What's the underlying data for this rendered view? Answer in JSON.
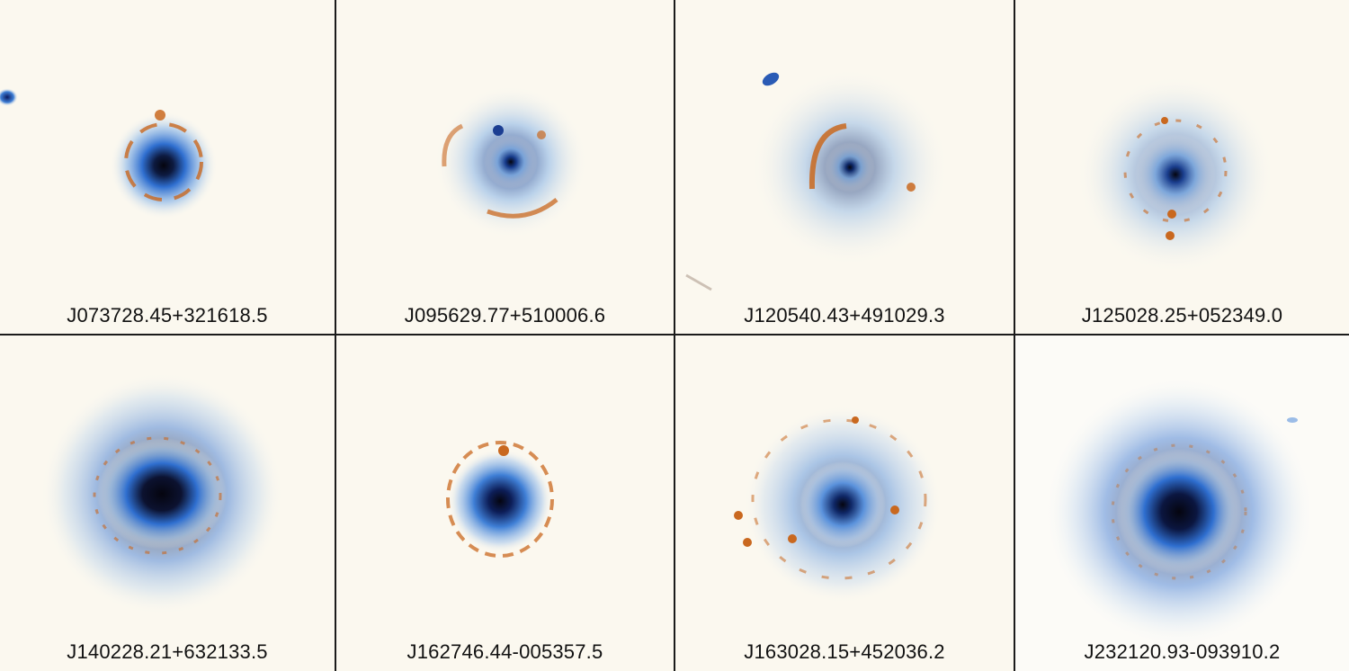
{
  "figure": {
    "panels": [
      {
        "label": "J073728.45+321618.5"
      },
      {
        "label": "J095629.77+510006.6"
      },
      {
        "label": "J120540.43+491029.3"
      },
      {
        "label": "J125028.25+052349.0"
      },
      {
        "label": "J140228.21+632133.5"
      },
      {
        "label": "J162746.44-005357.5"
      },
      {
        "label": "J163028.15+452036.2"
      },
      {
        "label": "J232120.93-093910.2"
      }
    ],
    "colors": {
      "background": "#fbf8ef",
      "lens_core": "#0a0a14",
      "lens_halo": "#3f7fd6",
      "arc": "#c9681f",
      "divider": "#1b1b1b"
    }
  }
}
